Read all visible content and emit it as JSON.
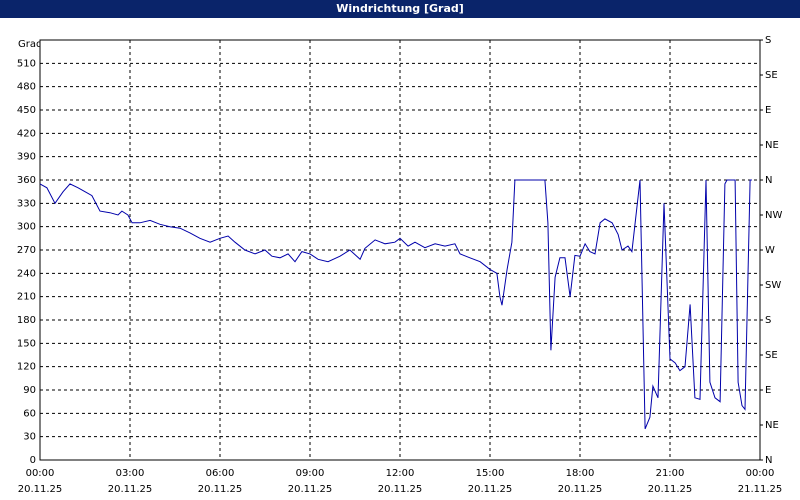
{
  "chart_data": {
    "type": "line",
    "title": "Windrichtung [Grad]",
    "ylabel": "Grad",
    "x": [
      0,
      0.23,
      0.5,
      0.77,
      1,
      1.27,
      1.5,
      1.73,
      2,
      2.33,
      2.6,
      2.73,
      2.93,
      3.07,
      3.33,
      3.67,
      4,
      4.33,
      4.67,
      5,
      5.33,
      5.67,
      6,
      6.27,
      6.5,
      6.83,
      7.17,
      7.5,
      7.73,
      8,
      8.27,
      8.5,
      8.73,
      9,
      9.27,
      9.6,
      10,
      10.33,
      10.67,
      10.83,
      11.17,
      11.5,
      11.83,
      12,
      12.27,
      12.5,
      12.83,
      13.17,
      13.5,
      13.83,
      14,
      14.33,
      14.67,
      15,
      15.23,
      15.33,
      15.4,
      15.57,
      15.73,
      15.83,
      16.83,
      16.93,
      17.03,
      17.17,
      17.33,
      17.5,
      17.67,
      17.83,
      18,
      18.17,
      18.33,
      18.5,
      18.67,
      18.83,
      19.07,
      19.27,
      19.4,
      19.6,
      19.73,
      20,
      20.17,
      20.33,
      20.43,
      20.6,
      20.8,
      21,
      21.17,
      21.33,
      21.5,
      21.67,
      21.83,
      22,
      22.2,
      22.33,
      22.5,
      22.67,
      22.83,
      22.9,
      23.17,
      23.27,
      23.4,
      23.5,
      23.67,
      23.73
    ],
    "series": [
      {
        "name": "Windrichtung",
        "color": "#0000aa",
        "values": [
          355,
          350,
          330,
          345,
          355,
          350,
          345,
          340,
          320,
          318,
          315,
          320,
          315,
          305,
          305,
          308,
          303,
          300,
          298,
          292,
          285,
          280,
          285,
          288,
          280,
          270,
          265,
          270,
          262,
          260,
          265,
          255,
          268,
          265,
          258,
          255,
          262,
          270,
          258,
          272,
          283,
          278,
          280,
          285,
          275,
          280,
          273,
          278,
          275,
          278,
          265,
          260,
          255,
          245,
          240,
          210,
          199,
          245,
          280,
          360,
          360,
          305,
          141,
          235,
          260,
          260,
          210,
          263,
          262,
          278,
          268,
          265,
          305,
          310,
          305,
          290,
          270,
          275,
          268,
          360,
          40,
          55,
          95,
          80,
          330,
          130,
          125,
          115,
          120,
          200,
          80,
          78,
          360,
          100,
          80,
          75,
          355,
          360,
          360,
          100,
          70,
          65,
          360,
          360
        ]
      }
    ],
    "xlim": [
      0,
      24
    ],
    "xticks": [
      {
        "value": 0,
        "label": "00:00",
        "date": "20.11.25"
      },
      {
        "value": 3,
        "label": "03:00",
        "date": "20.11.25"
      },
      {
        "value": 6,
        "label": "06:00",
        "date": "20.11.25"
      },
      {
        "value": 9,
        "label": "09:00",
        "date": "20.11.25"
      },
      {
        "value": 12,
        "label": "12:00",
        "date": "20.11.25"
      },
      {
        "value": 15,
        "label": "15:00",
        "date": "20.11.25"
      },
      {
        "value": 18,
        "label": "18:00",
        "date": "20.11.25"
      },
      {
        "value": 21,
        "label": "21:00",
        "date": "20.11.25"
      },
      {
        "value": 24,
        "label": "00:00",
        "date": "21.11.25"
      }
    ],
    "ylim": [
      0,
      540
    ],
    "yticks": [
      0,
      30,
      60,
      90,
      120,
      150,
      180,
      210,
      240,
      270,
      300,
      330,
      360,
      390,
      420,
      450,
      480,
      510
    ],
    "y2lim": [
      0,
      540
    ],
    "y2ticks": [
      {
        "value": 0,
        "label": "N"
      },
      {
        "value": 45,
        "label": "NE"
      },
      {
        "value": 90,
        "label": "E"
      },
      {
        "value": 135,
        "label": "SE"
      },
      {
        "value": 180,
        "label": "S"
      },
      {
        "value": 225,
        "label": "SW"
      },
      {
        "value": 270,
        "label": "W"
      },
      {
        "value": 315,
        "label": "NW"
      },
      {
        "value": 360,
        "label": "N"
      },
      {
        "value": 405,
        "label": "NE"
      },
      {
        "value": 450,
        "label": "E"
      },
      {
        "value": 495,
        "label": "SE"
      },
      {
        "value": 540,
        "label": "S"
      }
    ],
    "grid": true
  }
}
